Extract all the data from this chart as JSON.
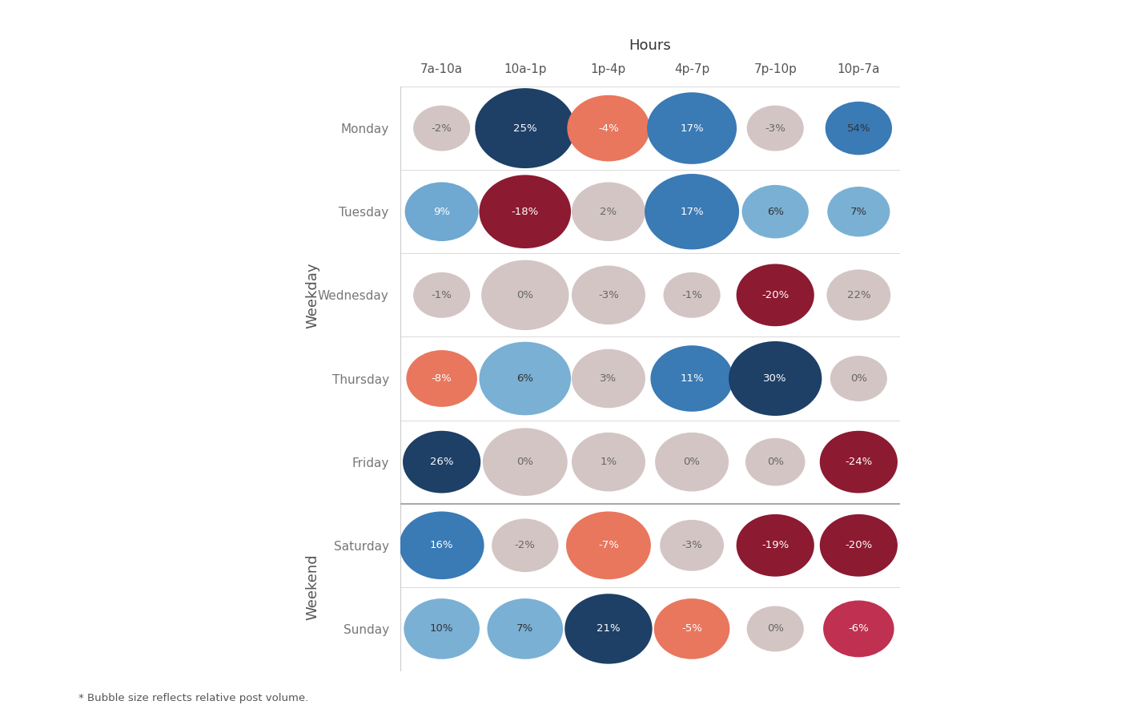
{
  "hours": [
    "7a-10a",
    "10a-1p",
    "1p-4p",
    "4p-7p",
    "7p-10p",
    "10p-7a"
  ],
  "days": [
    "Monday",
    "Tuesday",
    "Wednesday",
    "Thursday",
    "Friday",
    "Saturday",
    "Sunday"
  ],
  "values": [
    [
      -2,
      25,
      -4,
      17,
      -3,
      54
    ],
    [
      9,
      -18,
      2,
      17,
      6,
      7
    ],
    [
      -1,
      0,
      -3,
      -1,
      -20,
      22
    ],
    [
      -8,
      6,
      3,
      11,
      30,
      0
    ],
    [
      26,
      0,
      1,
      0,
      0,
      -24
    ],
    [
      16,
      -2,
      -7,
      -3,
      -19,
      -20
    ],
    [
      10,
      7,
      21,
      -5,
      0,
      -6
    ]
  ],
  "bubble_sizes": [
    [
      28,
      90,
      65,
      75,
      28,
      42
    ],
    [
      52,
      78,
      52,
      82,
      42,
      36
    ],
    [
      28,
      72,
      52,
      28,
      58,
      38
    ],
    [
      48,
      78,
      52,
      65,
      80,
      28
    ],
    [
      58,
      68,
      52,
      52,
      32,
      58
    ],
    [
      68,
      42,
      68,
      38,
      58,
      58
    ],
    [
      55,
      55,
      72,
      55,
      28,
      48
    ]
  ],
  "colors": [
    [
      "#d4c5c5",
      "#1e3f66",
      "#e8775e",
      "#3a7ab5",
      "#d4c5c5",
      "#3a7ab5"
    ],
    [
      "#6fa8d0",
      "#8c1a30",
      "#d4c5c5",
      "#3a7ab5",
      "#7ab0d4",
      "#7ab0d4"
    ],
    [
      "#d4c5c5",
      "#d4c5c5",
      "#d4c5c5",
      "#d4c5c5",
      "#8c1a30",
      "#d4c5c5"
    ],
    [
      "#e8775e",
      "#7ab0d4",
      "#d4c5c5",
      "#3a7ab5",
      "#1e3f66",
      "#d4c5c5"
    ],
    [
      "#1e3f66",
      "#d4c5c5",
      "#d4c5c5",
      "#d4c5c5",
      "#d4c5c5",
      "#8c1a30"
    ],
    [
      "#3a7ab5",
      "#d4c5c5",
      "#e8775e",
      "#d4c5c5",
      "#8c1a30",
      "#8c1a30"
    ],
    [
      "#7ab0d4",
      "#7ab0d4",
      "#1e3f66",
      "#e8775e",
      "#d4c5c5",
      "#c03050"
    ]
  ],
  "text_colors": [
    [
      "#666666",
      "#ffffff",
      "#ffffff",
      "#ffffff",
      "#666666",
      "#333333"
    ],
    [
      "#ffffff",
      "#ffffff",
      "#666666",
      "#ffffff",
      "#333333",
      "#333333"
    ],
    [
      "#666666",
      "#666666",
      "#666666",
      "#666666",
      "#ffffff",
      "#666666"
    ],
    [
      "#ffffff",
      "#333333",
      "#666666",
      "#ffffff",
      "#ffffff",
      "#666666"
    ],
    [
      "#ffffff",
      "#666666",
      "#666666",
      "#666666",
      "#666666",
      "#ffffff"
    ],
    [
      "#ffffff",
      "#666666",
      "#ffffff",
      "#666666",
      "#ffffff",
      "#ffffff"
    ],
    [
      "#333333",
      "#333333",
      "#ffffff",
      "#ffffff",
      "#666666",
      "#ffffff"
    ]
  ],
  "weekday_label": "Weekday",
  "weekend_label": "Weekend",
  "hours_label": "Hours",
  "footnote": "* Bubble size reflects relative post volume.",
  "label_fontsize": 12,
  "tick_fontsize": 11,
  "background_color": "#ffffff",
  "weekday_rows": [
    0,
    1,
    2,
    3,
    4
  ],
  "weekend_rows": [
    5,
    6
  ]
}
